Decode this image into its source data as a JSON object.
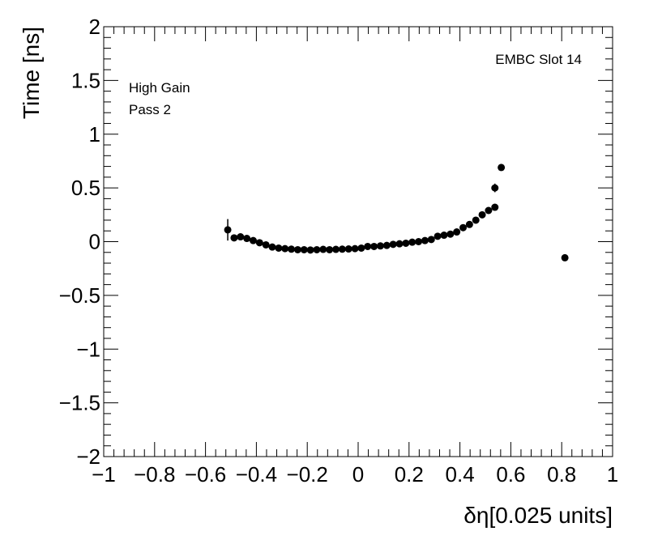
{
  "chart_data": {
    "type": "scatter",
    "xlabel": "δη[0.025 units]",
    "ylabel": "Time [ns]",
    "xlim": [
      -1,
      1
    ],
    "ylim": [
      -2,
      2
    ],
    "x_ticks": [
      -1,
      -0.8,
      -0.6,
      -0.4,
      -0.2,
      0,
      0.2,
      0.4,
      0.6,
      0.8,
      1
    ],
    "x_tick_labels": [
      "−1",
      "−0.8",
      "−0.6",
      "−0.4",
      "−0.2",
      "0",
      "0.2",
      "0.4",
      "0.6",
      "0.8",
      "1"
    ],
    "y_ticks": [
      -2,
      -1.5,
      -1,
      -0.5,
      0,
      0.5,
      1,
      1.5,
      2
    ],
    "y_tick_labels": [
      "−2",
      "−1.5",
      "−1",
      "−0.5",
      "0",
      "0.5",
      "1",
      "1.5",
      "2"
    ],
    "grid": false,
    "annotations": [
      "High Gain",
      "Pass 2",
      "EMBC Slot 14"
    ],
    "series": [
      {
        "marker_color": "#000000",
        "points": [
          {
            "x": -0.5125,
            "y": 0.11,
            "err": 0.1
          },
          {
            "x": -0.4875,
            "y": 0.035,
            "err": 0.02
          },
          {
            "x": -0.4625,
            "y": 0.045,
            "err": 0.015
          },
          {
            "x": -0.4375,
            "y": 0.03,
            "err": 0.01
          },
          {
            "x": -0.4125,
            "y": 0.01,
            "err": 0.01
          },
          {
            "x": -0.3875,
            "y": -0.01,
            "err": 0.01
          },
          {
            "x": -0.3625,
            "y": -0.03,
            "err": 0.01
          },
          {
            "x": -0.3375,
            "y": -0.05,
            "err": 0.01
          },
          {
            "x": -0.3125,
            "y": -0.06,
            "err": 0.01
          },
          {
            "x": -0.2875,
            "y": -0.065,
            "err": 0.01
          },
          {
            "x": -0.2625,
            "y": -0.07,
            "err": 0.01
          },
          {
            "x": -0.2375,
            "y": -0.075,
            "err": 0.01
          },
          {
            "x": -0.2125,
            "y": -0.075,
            "err": 0.01
          },
          {
            "x": -0.1875,
            "y": -0.078,
            "err": 0.01
          },
          {
            "x": -0.1625,
            "y": -0.075,
            "err": 0.01
          },
          {
            "x": -0.1375,
            "y": -0.072,
            "err": 0.01
          },
          {
            "x": -0.1125,
            "y": -0.075,
            "err": 0.01
          },
          {
            "x": -0.0875,
            "y": -0.072,
            "err": 0.01
          },
          {
            "x": -0.0625,
            "y": -0.07,
            "err": 0.01
          },
          {
            "x": -0.0375,
            "y": -0.068,
            "err": 0.01
          },
          {
            "x": -0.0125,
            "y": -0.065,
            "err": 0.01
          },
          {
            "x": 0.0125,
            "y": -0.06,
            "err": 0.01
          },
          {
            "x": 0.0375,
            "y": -0.045,
            "err": 0.01
          },
          {
            "x": 0.0625,
            "y": -0.045,
            "err": 0.01
          },
          {
            "x": 0.0875,
            "y": -0.04,
            "err": 0.01
          },
          {
            "x": 0.1125,
            "y": -0.035,
            "err": 0.01
          },
          {
            "x": 0.1375,
            "y": -0.025,
            "err": 0.01
          },
          {
            "x": 0.1625,
            "y": -0.02,
            "err": 0.01
          },
          {
            "x": 0.1875,
            "y": -0.015,
            "err": 0.01
          },
          {
            "x": 0.2125,
            "y": -0.005,
            "err": 0.01
          },
          {
            "x": 0.2375,
            "y": 0.0,
            "err": 0.01
          },
          {
            "x": 0.2625,
            "y": 0.01,
            "err": 0.01
          },
          {
            "x": 0.2875,
            "y": 0.02,
            "err": 0.01
          },
          {
            "x": 0.3125,
            "y": 0.05,
            "err": 0.01
          },
          {
            "x": 0.3375,
            "y": 0.06,
            "err": 0.01
          },
          {
            "x": 0.3625,
            "y": 0.07,
            "err": 0.01
          },
          {
            "x": 0.3875,
            "y": 0.09,
            "err": 0.01
          },
          {
            "x": 0.4125,
            "y": 0.13,
            "err": 0.01
          },
          {
            "x": 0.4375,
            "y": 0.16,
            "err": 0.01
          },
          {
            "x": 0.4625,
            "y": 0.2,
            "err": 0.01
          },
          {
            "x": 0.4875,
            "y": 0.25,
            "err": 0.015
          },
          {
            "x": 0.5125,
            "y": 0.29,
            "err": 0.015
          },
          {
            "x": 0.5375,
            "y": 0.32,
            "err": 0.015
          },
          {
            "x": 0.5375,
            "y": 0.5,
            "err": 0.04
          },
          {
            "x": 0.5625,
            "y": 0.69,
            "err": 0.015
          },
          {
            "x": 0.8125,
            "y": -0.15,
            "err": 0.01
          }
        ]
      }
    ]
  }
}
